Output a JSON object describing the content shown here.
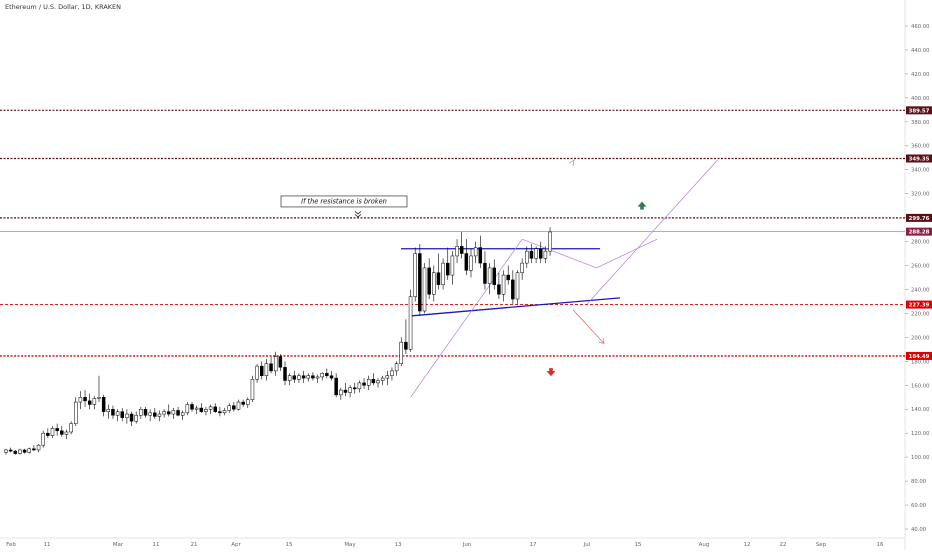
{
  "header": {
    "symbol_title": "Ethereum / U.S. Dollar, 1D, KRAKEN"
  },
  "colors": {
    "bull": "#ffffff",
    "bear": "#000000",
    "wick": "#000000",
    "level_dark": "#5b0f18",
    "level_red": "#e00000",
    "channel_blue": "#1a1ab8",
    "projection_purple": "#b57be0",
    "current_price": "#b57be0",
    "arrow_green": "#2e7d4f",
    "arrow_red": "#d32f2f",
    "down_path": "#e57373"
  },
  "chart_data": {
    "type": "candlestick",
    "title": "Ethereum / U.S. Dollar, 1D, KRAKEN",
    "x_axis_labels": [
      "Feb",
      "11",
      "Mar",
      "11",
      "21",
      "Apr",
      "15",
      "May",
      "13",
      "Jun",
      "17",
      "Jul",
      "15",
      "Aug",
      "12",
      "22",
      "Sep",
      "16"
    ],
    "y_axis_ticks": [
      40,
      60,
      80,
      100,
      120,
      140,
      160,
      180,
      200,
      220,
      240,
      260,
      280,
      300,
      320,
      340,
      360,
      380,
      400,
      420,
      440,
      460
    ],
    "ylim": [
      35,
      470
    ],
    "grid": false,
    "levels": [
      {
        "label": "389.57",
        "price": 389.57,
        "style": "dark"
      },
      {
        "label": "349.35",
        "price": 349.35,
        "style": "dark"
      },
      {
        "label": "299.76",
        "price": 299.76,
        "style": "dark"
      },
      {
        "label": "288.28",
        "price": 288.28,
        "style": "current"
      },
      {
        "label": "227.39",
        "price": 227.39,
        "style": "red"
      },
      {
        "label": "184.49",
        "price": 184.49,
        "style": "red"
      }
    ],
    "annotation": {
      "text": "If the resistance is broken"
    },
    "candles": [
      [
        104,
        107,
        102,
        106
      ],
      [
        106,
        108,
        104,
        105
      ],
      [
        105,
        106,
        102,
        103
      ],
      [
        103,
        107,
        102,
        106
      ],
      [
        106,
        107,
        103,
        104
      ],
      [
        104,
        108,
        103,
        107
      ],
      [
        107,
        110,
        105,
        106
      ],
      [
        106,
        111,
        104,
        110
      ],
      [
        110,
        122,
        108,
        120
      ],
      [
        120,
        124,
        116,
        118
      ],
      [
        118,
        126,
        116,
        124
      ],
      [
        124,
        128,
        118,
        122
      ],
      [
        122,
        126,
        117,
        119
      ],
      [
        119,
        123,
        115,
        121
      ],
      [
        121,
        130,
        119,
        128
      ],
      [
        128,
        150,
        126,
        146
      ],
      [
        146,
        155,
        140,
        150
      ],
      [
        150,
        156,
        142,
        147
      ],
      [
        147,
        153,
        140,
        144
      ],
      [
        144,
        151,
        140,
        149
      ],
      [
        149,
        168,
        146,
        150
      ],
      [
        150,
        152,
        134,
        138
      ],
      [
        138,
        144,
        132,
        140
      ],
      [
        140,
        143,
        132,
        135
      ],
      [
        135,
        140,
        130,
        138
      ],
      [
        138,
        141,
        130,
        133
      ],
      [
        133,
        140,
        128,
        136
      ],
      [
        136,
        138,
        126,
        130
      ],
      [
        130,
        138,
        128,
        135
      ],
      [
        135,
        142,
        132,
        140
      ],
      [
        140,
        142,
        133,
        135
      ],
      [
        135,
        140,
        130,
        137
      ],
      [
        137,
        141,
        132,
        134
      ],
      [
        134,
        139,
        130,
        136
      ],
      [
        136,
        140,
        133,
        138
      ],
      [
        138,
        144,
        134,
        136
      ],
      [
        136,
        141,
        132,
        139
      ],
      [
        139,
        142,
        134,
        135
      ],
      [
        135,
        139,
        131,
        137
      ],
      [
        137,
        146,
        135,
        144
      ],
      [
        144,
        146,
        138,
        140
      ],
      [
        140,
        143,
        136,
        141
      ],
      [
        141,
        145,
        137,
        138
      ],
      [
        138,
        142,
        135,
        140
      ],
      [
        140,
        144,
        136,
        142
      ],
      [
        142,
        145,
        137,
        138
      ],
      [
        138,
        142,
        134,
        137
      ],
      [
        137,
        141,
        135,
        139
      ],
      [
        139,
        145,
        137,
        143
      ],
      [
        143,
        146,
        138,
        140
      ],
      [
        140,
        148,
        139,
        146
      ],
      [
        146,
        148,
        142,
        144
      ],
      [
        144,
        150,
        141,
        148
      ],
      [
        148,
        168,
        146,
        165
      ],
      [
        165,
        178,
        162,
        176
      ],
      [
        176,
        180,
        165,
        168
      ],
      [
        168,
        182,
        164,
        178
      ],
      [
        178,
        184,
        170,
        172
      ],
      [
        172,
        188,
        168,
        184
      ],
      [
        184,
        186,
        172,
        175
      ],
      [
        175,
        180,
        160,
        164
      ],
      [
        164,
        170,
        160,
        168
      ],
      [
        168,
        172,
        162,
        165
      ],
      [
        165,
        170,
        162,
        168
      ],
      [
        168,
        172,
        162,
        166
      ],
      [
        166,
        170,
        163,
        168
      ],
      [
        168,
        171,
        164,
        166
      ],
      [
        166,
        169,
        162,
        167
      ],
      [
        167,
        171,
        164,
        170
      ],
      [
        170,
        174,
        166,
        168
      ],
      [
        168,
        172,
        164,
        166
      ],
      [
        166,
        170,
        150,
        152
      ],
      [
        152,
        158,
        148,
        156
      ],
      [
        156,
        162,
        151,
        154
      ],
      [
        154,
        160,
        150,
        158
      ],
      [
        158,
        162,
        153,
        157
      ],
      [
        157,
        164,
        154,
        162
      ],
      [
        162,
        166,
        157,
        160
      ],
      [
        160,
        168,
        156,
        165
      ],
      [
        165,
        170,
        160,
        162
      ],
      [
        162,
        166,
        158,
        164
      ],
      [
        164,
        168,
        160,
        166
      ],
      [
        166,
        172,
        160,
        168
      ],
      [
        168,
        175,
        164,
        172
      ],
      [
        172,
        180,
        168,
        178
      ],
      [
        178,
        200,
        176,
        196
      ],
      [
        196,
        215,
        186,
        190
      ],
      [
        190,
        240,
        188,
        234
      ],
      [
        234,
        275,
        230,
        270
      ],
      [
        270,
        278,
        218,
        222
      ],
      [
        222,
        262,
        220,
        258
      ],
      [
        258,
        266,
        232,
        236
      ],
      [
        236,
        260,
        230,
        254
      ],
      [
        254,
        270,
        240,
        244
      ],
      [
        244,
        266,
        240,
        262
      ],
      [
        262,
        275,
        248,
        252
      ],
      [
        252,
        272,
        244,
        268
      ],
      [
        268,
        282,
        262,
        276
      ],
      [
        276,
        288,
        266,
        270
      ],
      [
        270,
        282,
        252,
        256
      ],
      [
        256,
        274,
        250,
        268
      ],
      [
        268,
        280,
        262,
        275
      ],
      [
        275,
        285,
        258,
        262
      ],
      [
        262,
        272,
        240,
        245
      ],
      [
        245,
        262,
        236,
        258
      ],
      [
        258,
        265,
        240,
        244
      ],
      [
        244,
        254,
        232,
        236
      ],
      [
        236,
        256,
        230,
        252
      ],
      [
        252,
        260,
        244,
        248
      ],
      [
        248,
        256,
        228,
        232
      ],
      [
        232,
        256,
        228,
        254
      ],
      [
        254,
        266,
        248,
        262
      ],
      [
        262,
        276,
        258,
        272
      ],
      [
        272,
        278,
        262,
        266
      ],
      [
        266,
        276,
        262,
        274
      ],
      [
        274,
        280,
        262,
        266
      ],
      [
        266,
        276,
        262,
        272
      ],
      [
        272,
        292,
        268,
        288
      ]
    ],
    "drawings": [
      {
        "name": "channel-top",
        "from": [
          110,
          274
        ],
        "to": [
          158,
          274
        ]
      },
      {
        "name": "channel-bottom",
        "from": [
          110,
          218
        ],
        "to": [
          164,
          233
        ]
      },
      {
        "name": "projection-up-1",
        "from": [
          87,
          150
        ],
        "to": [
          111,
          282
        ]
      },
      {
        "name": "projection-up-2",
        "from": [
          125,
          228
        ],
        "to": [
          153,
          348
        ]
      },
      {
        "name": "triangle-edge-a",
        "from": [
          111,
          282
        ],
        "to": [
          127,
          258
        ]
      },
      {
        "name": "triangle-edge-b",
        "from": [
          127,
          258
        ],
        "to": [
          140,
          282
        ]
      }
    ]
  }
}
